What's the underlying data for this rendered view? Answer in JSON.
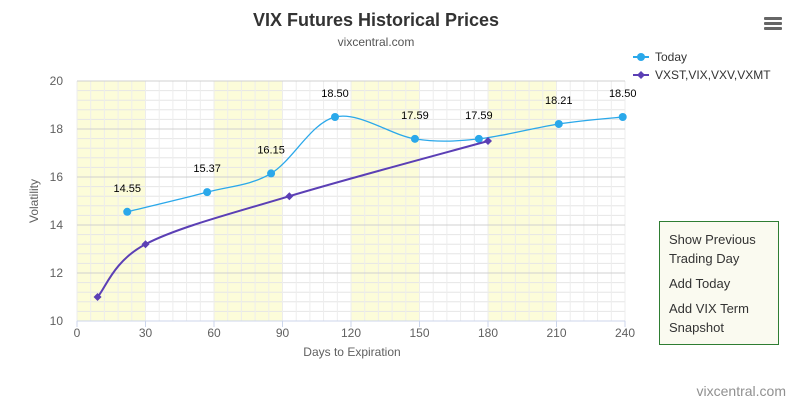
{
  "chart_data": {
    "type": "line",
    "title": "VIX Futures Historical Prices",
    "subtitle": "vixcentral.com",
    "xlabel": "Days to Expiration",
    "ylabel": "Volatility",
    "xlim": [
      0,
      240
    ],
    "ylim": [
      10,
      20
    ],
    "x_ticks": [
      0,
      30,
      60,
      90,
      120,
      150,
      180,
      210,
      240
    ],
    "y_ticks": [
      10,
      12,
      14,
      16,
      18,
      20
    ],
    "grid": true,
    "band_colors": [
      "#fcfcd9"
    ],
    "bands": [
      [
        0,
        30
      ],
      [
        60,
        90
      ],
      [
        120,
        150
      ],
      [
        180,
        210
      ]
    ],
    "legend_position": "top-right",
    "series": [
      {
        "name": "Today",
        "color": "#2aa8ea",
        "marker": "circle",
        "data_labels": true,
        "points": [
          {
            "x": 22,
            "y": 14.55
          },
          {
            "x": 57,
            "y": 15.37
          },
          {
            "x": 85,
            "y": 16.15
          },
          {
            "x": 113,
            "y": 18.5
          },
          {
            "x": 148,
            "y": 17.59
          },
          {
            "x": 176,
            "y": 17.59
          },
          {
            "x": 211,
            "y": 18.21
          },
          {
            "x": 239,
            "y": 18.5
          }
        ]
      },
      {
        "name": "VXST,VIX,VXV,VXMT",
        "color": "#5b3fb5",
        "marker": "diamond",
        "data_labels": false,
        "points": [
          {
            "x": 9,
            "y": 11.0
          },
          {
            "x": 30,
            "y": 13.2
          },
          {
            "x": 93,
            "y": 15.2
          },
          {
            "x": 180,
            "y": 17.5
          }
        ]
      }
    ]
  },
  "menu": {
    "items": [
      "Show Previous Trading Day",
      "Add Today",
      "Add VIX Term Snapshot"
    ]
  },
  "credit": "vixcentral.com"
}
